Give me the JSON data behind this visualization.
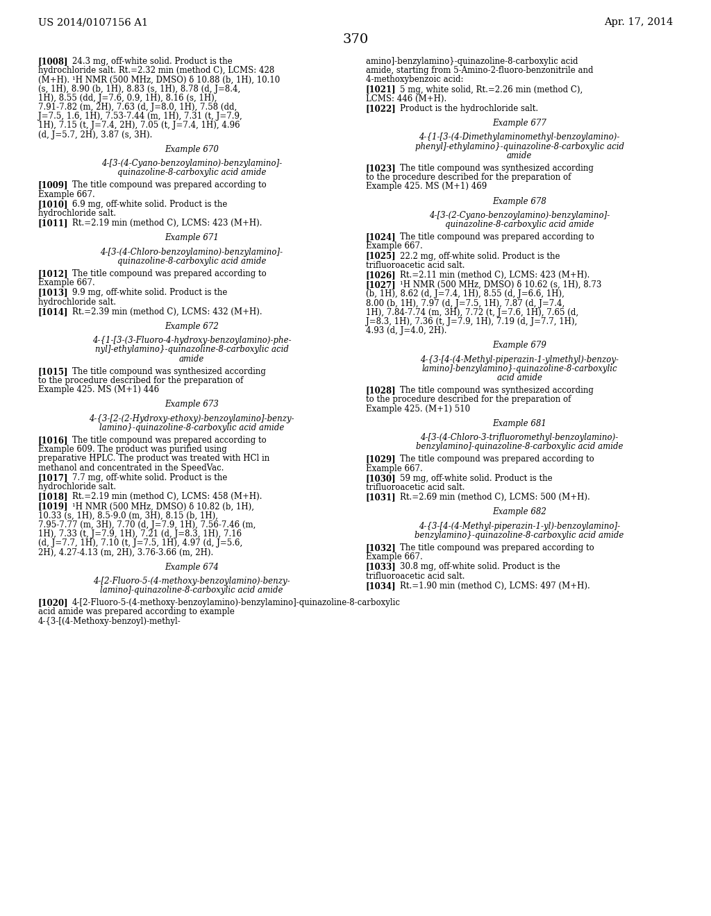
{
  "page_number": "370",
  "header_left": "US 2014/0107156 A1",
  "header_right": "Apr. 17, 2014",
  "background_color": "#ffffff",
  "left_column": [
    {
      "type": "paragraph",
      "tag": "1008",
      "text": "24.3 mg, off-white solid. Product is the hydrochloride salt. Rt.=2.32 min (method C), LCMS: 428 (M+H). ¹H NMR (500 MHz, DMSO) δ 10.88 (b, 1H), 10.10 (s, 1H), 8.90 (b, 1H), 8.83 (s, 1H), 8.78 (d, J=8.4, 1H), 8.55 (dd, J=7.6, 0.9, 1H), 8.16 (s, 1H), 7.91-7.82 (m, 2H), 7.63 (d, J=8.0, 1H), 7.58 (dd, J=7.5, 1.6, 1H), 7.53-7.44 (m, 1H), 7.31 (t, J=7.9, 1H), 7.15 (t, J=7.4, 2H), 7.05 (t, J=7.4, 1H), 4.96 (d, J=5.7, 2H), 3.87 (s, 3H)."
    },
    {
      "type": "example_header",
      "text": "Example 670"
    },
    {
      "type": "compound_name",
      "text": "4-[3-(4-Cyano-benzoylamino)-benzylamino]-\nquinazoline-8-carboxylic acid amide"
    },
    {
      "type": "paragraph",
      "tag": "1009",
      "text": "The title compound was prepared according to Example 667."
    },
    {
      "type": "paragraph",
      "tag": "1010",
      "text": "6.9 mg, off-white solid. Product is the hydrochloride salt."
    },
    {
      "type": "paragraph",
      "tag": "1011",
      "text": "Rt.=2.19 min (method C), LCMS: 423 (M+H)."
    },
    {
      "type": "example_header",
      "text": "Example 671"
    },
    {
      "type": "compound_name",
      "text": "4-[3-(4-Chloro-benzoylamino)-benzylamino]-\nquinazoline-8-carboxylic acid amide"
    },
    {
      "type": "paragraph",
      "tag": "1012",
      "text": "The title compound was prepared according to Example 667."
    },
    {
      "type": "paragraph",
      "tag": "1013",
      "text": "9.9 mg, off-white solid. Product is the hydrochloride salt."
    },
    {
      "type": "paragraph",
      "tag": "1014",
      "text": "Rt.=2.39 min (method C), LCMS: 432 (M+H)."
    },
    {
      "type": "example_header",
      "text": "Example 672"
    },
    {
      "type": "compound_name",
      "text": "4-{1-[3-(3-Fluoro-4-hydroxy-benzoylamino)-phe-\nnyl]-ethylamino}-quinazoline-8-carboxylic acid\namide"
    },
    {
      "type": "paragraph",
      "tag": "1015",
      "text": "The title compound was synthesized according to the procedure described for the preparation of Example 425. MS (M+1) 446"
    },
    {
      "type": "example_header",
      "text": "Example 673"
    },
    {
      "type": "compound_name",
      "text": "4-{3-[2-(2-Hydroxy-ethoxy)-benzoylamino]-benzy-\nlamino}-quinazoline-8-carboxylic acid amide"
    },
    {
      "type": "paragraph",
      "tag": "1016",
      "text": "The title compound was prepared according to Example 609. The product was purified using preparative HPLC. The product was treated with HCl in methanol and concentrated in the SpeedVac."
    },
    {
      "type": "paragraph",
      "tag": "1017",
      "text": "7.7 mg, off-white solid. Product is the hydrochloride salt."
    },
    {
      "type": "paragraph",
      "tag": "1018",
      "text": "Rt.=2.19 min (method C), LCMS: 458 (M+H)."
    },
    {
      "type": "paragraph",
      "tag": "1019",
      "text": "¹H NMR (500 MHz, DMSO) δ 10.82 (b, 1H), 10.33 (s, 1H), 8.5-9.0 (m, 3H), 8.15 (b, 1H), 7.95-7.77 (m, 3H), 7.70 (d, J=7.9, 1H), 7.56-7.46 (m, 1H), 7.33 (t, J=7.9, 1H), 7.21 (d, J=8.3, 1H), 7.16 (d, J=7.7, 1H), 7.10 (t, J=7.5, 1H), 4.97 (d, J=5.6, 2H), 4.27-4.13 (m, 2H), 3.76-3.66 (m, 2H)."
    },
    {
      "type": "example_header",
      "text": "Example 674"
    },
    {
      "type": "compound_name",
      "text": "4-[2-Fluoro-5-(4-methoxy-benzoylamino)-benzy-\nlamino]-quinazoline-8-carboxylic acid amide"
    },
    {
      "type": "paragraph",
      "tag": "1020",
      "text": "4-[2-Fluoro-5-(4-methoxy-benzoylamino)-benzylamino]-quinazoline-8-carboxylic acid amide was prepared according to example 4-{3-[(4-Methoxy-benzoyl)-methyl-"
    }
  ],
  "right_column": [
    {
      "type": "paragraph_cont",
      "text": "amino]-benzylamino}-quinazoline-8-carboxylic acid amide, starting from 5-Amino-2-fluoro-benzonitrile and 4-methoxybenzoic acid:"
    },
    {
      "type": "paragraph",
      "tag": "1021",
      "text": "5 mg, white solid, Rt.=2.26 min (method C), LCMS: 446 (M+H)."
    },
    {
      "type": "paragraph",
      "tag": "1022",
      "text": "Product is the hydrochloride salt."
    },
    {
      "type": "example_header",
      "text": "Example 677"
    },
    {
      "type": "compound_name",
      "text": "4-{1-[3-(4-Dimethylaminomethyl-benzoylamino)-\nphenyl]-ethylamino}-quinazoline-8-carboxylic acid\namide"
    },
    {
      "type": "paragraph",
      "tag": "1023",
      "text": "The title compound was synthesized according to the procedure described for the preparation of Example 425. MS (M+1) 469"
    },
    {
      "type": "example_header",
      "text": "Example 678"
    },
    {
      "type": "compound_name",
      "text": "4-[3-(2-Cyano-benzoylamino)-benzylamino]-\nquinazoline-8-carboxylic acid amide"
    },
    {
      "type": "paragraph",
      "tag": "1024",
      "text": "The title compound was prepared according to Example 667."
    },
    {
      "type": "paragraph",
      "tag": "1025",
      "text": "22.2 mg, off-white solid. Product is the trifluoroacetic acid salt."
    },
    {
      "type": "paragraph",
      "tag": "1026",
      "text": "Rt.=2.11 min (method C), LCMS: 423 (M+H)."
    },
    {
      "type": "paragraph",
      "tag": "1027",
      "text": "¹H NMR (500 MHz, DMSO) δ 10.62 (s, 1H), 8.73 (b, 1H), 8.62 (d, J=7.4, 1H), 8.55 (d, J=6.6, 1H), 8.00 (b, 1H), 7.97 (d, J=7.5, 1H), 7.87 (d, J=7.4, 1H), 7.84-7.74 (m, 3H), 7.72 (t, J=7.6, 1H), 7.65 (d, J=8.3, 1H), 7.36 (t, J=7.9, 1H), 7.19 (d, J=7.7, 1H), 4.93 (d, J=4.0, 2H)."
    },
    {
      "type": "example_header",
      "text": "Example 679"
    },
    {
      "type": "compound_name",
      "text": "4-{3-[4-(4-Methyl-piperazin-1-ylmethyl)-benzoy-\nlamino]-benzylamino}-quinazoline-8-carboxylic\nacid amide"
    },
    {
      "type": "paragraph",
      "tag": "1028",
      "text": "The title compound was synthesized according to the procedure described for the preparation of Example 425. (M+1) 510"
    },
    {
      "type": "example_header",
      "text": "Example 681"
    },
    {
      "type": "compound_name",
      "text": "4-[3-(4-Chloro-3-trifluoromethyl-benzoylamino)-\nbenzylamino]-quinazoline-8-carboxylic acid amide"
    },
    {
      "type": "paragraph",
      "tag": "1029",
      "text": "The title compound was prepared according to Example 667."
    },
    {
      "type": "paragraph",
      "tag": "1030",
      "text": "59 mg, off-white solid. Product is the trifluoroacetic acid salt."
    },
    {
      "type": "paragraph",
      "tag": "1031",
      "text": "Rt.=2.69 min (method C), LCMS: 500 (M+H)."
    },
    {
      "type": "example_header",
      "text": "Example 682"
    },
    {
      "type": "compound_name",
      "text": "4-{3-[4-(4-Methyl-piperazin-1-yl)-benzoylamino]-\nbenzylamino}-quinazoline-8-carboxylic acid amide"
    },
    {
      "type": "paragraph",
      "tag": "1032",
      "text": "The title compound was prepared according to Example 667."
    },
    {
      "type": "paragraph",
      "tag": "1033",
      "text": "30.8 mg, off-white solid. Product is the trifluoroacetic acid salt."
    },
    {
      "type": "paragraph",
      "tag": "1034",
      "text": "Rt.=1.90 min (method C), LCMS: 497 (M+H)."
    }
  ]
}
